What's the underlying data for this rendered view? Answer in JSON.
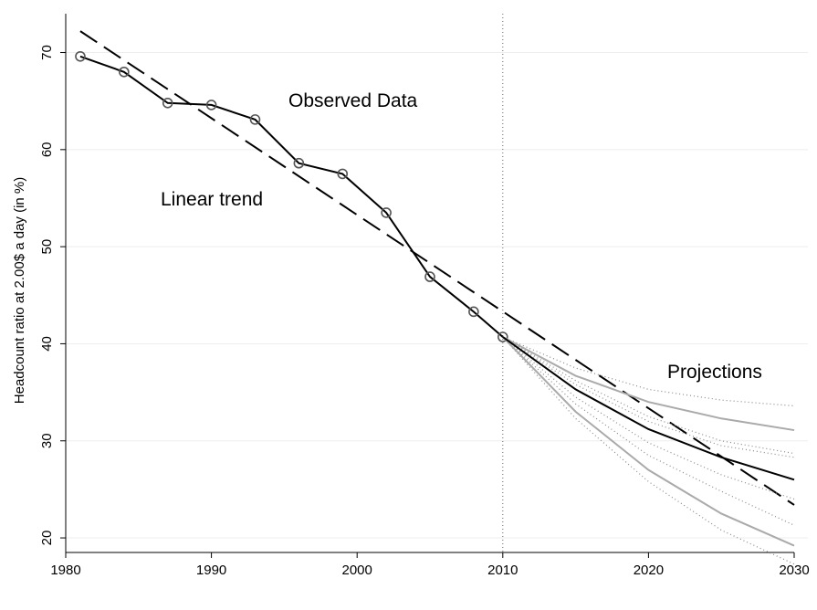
{
  "chart_data": {
    "type": "line",
    "y_label": "Headcount ratio at 2.00$ a day (in %)",
    "annotations": [
      "Observed Data",
      "Linear trend",
      "Projections"
    ],
    "xlim": [
      1980,
      2030
    ],
    "ylim": [
      18.5,
      74
    ],
    "xticks": [
      1980,
      1990,
      2000,
      2010,
      2020,
      2030
    ],
    "yticks": [
      20,
      30,
      40,
      50,
      60,
      70
    ],
    "grid": true,
    "vline": 2010,
    "series": [
      {
        "color": "#000000",
        "style": "solid",
        "marker": "circle",
        "x": [
          1981,
          1984,
          1987,
          1990,
          1993,
          1996,
          1999,
          2002,
          2005,
          2008,
          2010
        ],
        "values": [
          69.6,
          68.0,
          64.8,
          64.6,
          63.1,
          58.6,
          57.5,
          53.5,
          46.9,
          43.3,
          40.7
        ]
      },
      {
        "color": "#000000",
        "style": "dashed",
        "x": [
          1981,
          2030
        ],
        "values": [
          72.2,
          23.4
        ]
      },
      {
        "color": "#888888",
        "style": "dotted",
        "x": [
          2010,
          2015,
          2020,
          2025,
          2030
        ],
        "values": [
          40.7,
          37.5,
          35.3,
          34.2,
          33.6
        ]
      },
      {
        "color": "#888888",
        "style": "dotted",
        "x": [
          2010,
          2015,
          2020,
          2025,
          2030
        ],
        "values": [
          40.7,
          36.2,
          32.5,
          30.0,
          28.7
        ]
      },
      {
        "color": "#888888",
        "style": "dotted",
        "x": [
          2010,
          2015,
          2020,
          2025,
          2030
        ],
        "values": [
          40.7,
          35.8,
          32.0,
          29.5,
          28.3
        ]
      },
      {
        "color": "#888888",
        "style": "dotted",
        "x": [
          2010,
          2015,
          2020,
          2025,
          2030
        ],
        "values": [
          40.7,
          34.5,
          29.8,
          26.5,
          24.0
        ]
      },
      {
        "color": "#888888",
        "style": "dotted",
        "x": [
          2010,
          2015,
          2020,
          2025,
          2030
        ],
        "values": [
          40.7,
          33.8,
          28.5,
          24.8,
          21.3
        ]
      },
      {
        "color": "#888888",
        "style": "dotted",
        "x": [
          2010,
          2015,
          2020,
          2025,
          2030
        ],
        "values": [
          40.7,
          32.3,
          25.8,
          20.8,
          17.3
        ]
      },
      {
        "color": "#aaaaaa",
        "style": "solid",
        "x": [
          2010,
          2015,
          2020,
          2025,
          2030
        ],
        "values": [
          40.7,
          36.7,
          34.0,
          32.3,
          31.1
        ]
      },
      {
        "color": "#aaaaaa",
        "style": "solid",
        "x": [
          2010,
          2015,
          2020,
          2025,
          2030
        ],
        "values": [
          40.7,
          33.0,
          27.0,
          22.5,
          19.2
        ]
      },
      {
        "color": "#000000",
        "style": "solid",
        "x": [
          2010,
          2015,
          2020,
          2025,
          2030
        ],
        "values": [
          40.7,
          35.3,
          31.2,
          28.3,
          26.0
        ]
      }
    ]
  }
}
